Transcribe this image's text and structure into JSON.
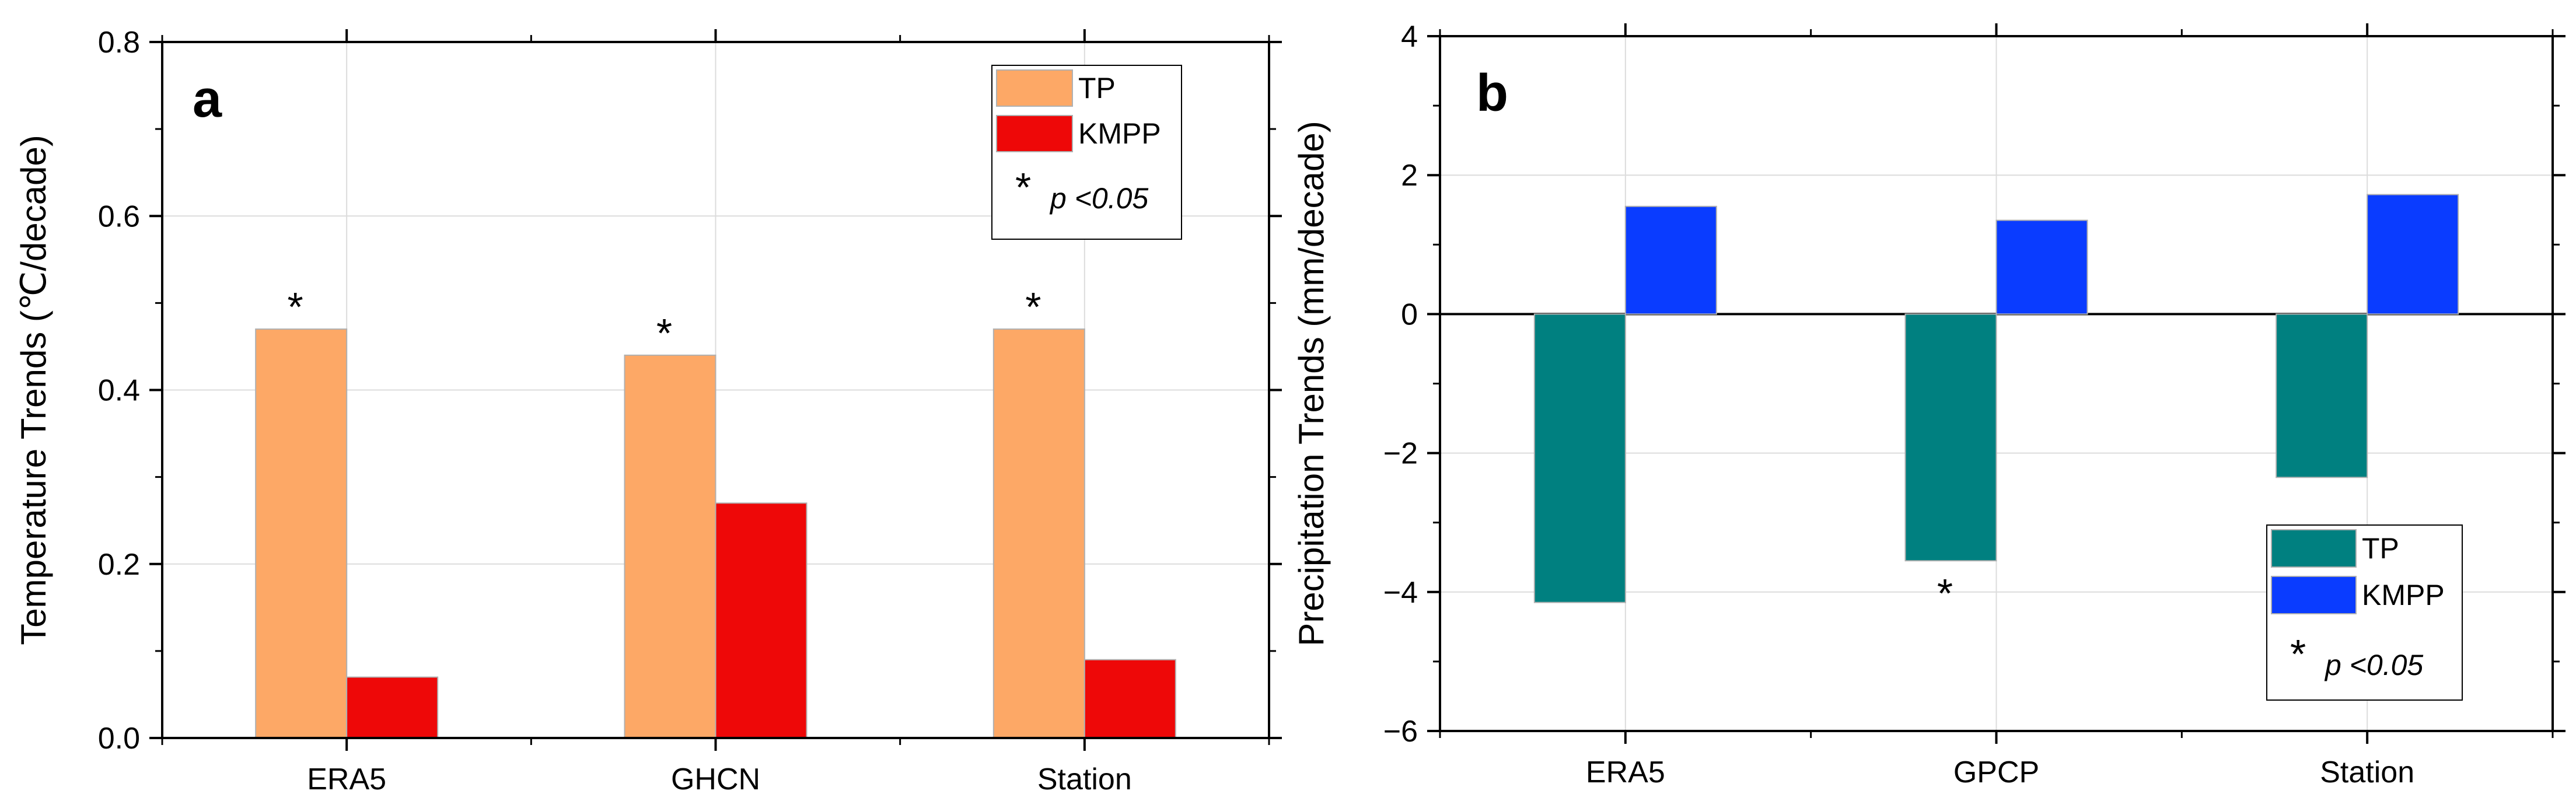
{
  "chart_data": [
    {
      "panel": "a",
      "type": "bar",
      "categories": [
        "ERA5",
        "GHCN",
        "Station"
      ],
      "series": [
        {
          "name": "TP",
          "color": "#FDA866",
          "values": [
            0.47,
            0.44,
            0.47
          ]
        },
        {
          "name": "KMPP",
          "color": "#EE0808",
          "values": [
            0.07,
            0.27,
            0.09
          ]
        }
      ],
      "significant": [
        [
          true,
          false
        ],
        [
          true,
          false
        ],
        [
          true,
          false
        ]
      ],
      "ylabel": "Temperature Trends (℃/decade)",
      "xlabel": "",
      "ylim": [
        0,
        0.8
      ],
      "yticks": [
        0,
        0.2,
        0.4,
        0.6,
        0.8
      ],
      "ytick_labels": [
        "0.0",
        "0.2",
        "0.4",
        "0.6",
        "0.8"
      ],
      "grid": true,
      "legend_position": "top-right",
      "significance_marker": "*",
      "significance_note": "p <0.05"
    },
    {
      "panel": "b",
      "type": "bar",
      "categories": [
        "ERA5",
        "GPCP",
        "Station"
      ],
      "series": [
        {
          "name": "TP",
          "color": "#008080",
          "values": [
            -4.15,
            -3.55,
            -2.35
          ]
        },
        {
          "name": "KMPP",
          "color": "#0A3CFF",
          "values": [
            1.55,
            1.35,
            1.72
          ]
        }
      ],
      "significant": [
        [
          false,
          false
        ],
        [
          true,
          false
        ],
        [
          false,
          false
        ]
      ],
      "ylabel": "Precipitation Trends (mm/decade)",
      "xlabel": "",
      "ylim": [
        -6,
        4
      ],
      "yticks": [
        -6,
        -4,
        -2,
        0,
        2,
        4
      ],
      "ytick_labels": [
        "−6",
        "−4",
        "−2",
        "0",
        "2",
        "4"
      ],
      "grid": true,
      "legend_position": "bottom-right",
      "significance_marker": "*",
      "significance_note": "p <0.05"
    }
  ]
}
